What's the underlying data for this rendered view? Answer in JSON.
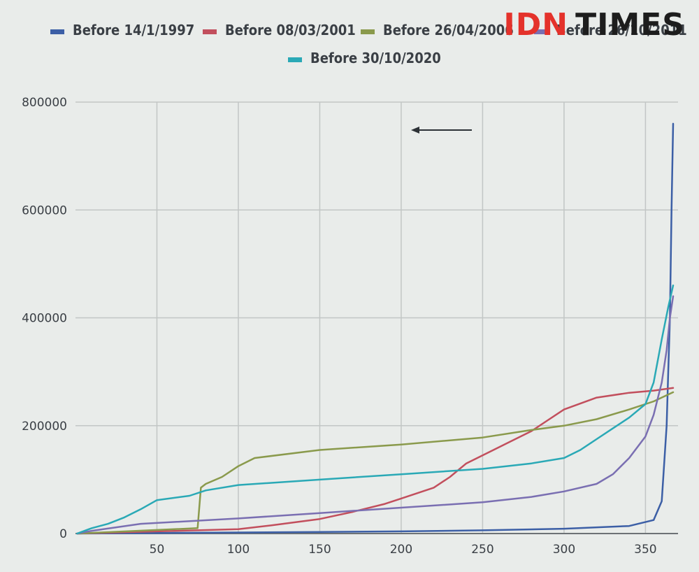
{
  "brand": {
    "part1": "IDN",
    "part2": "TIMES"
  },
  "colors": {
    "background": "#e9ecea",
    "grid": "#c2c6c5",
    "axis": "#6d7275",
    "brand_red": "#e4322b",
    "brand_dark": "#1d1d1d"
  },
  "chart_data": {
    "type": "line",
    "title": "",
    "xlabel": "",
    "ylabel": "",
    "xlim": [
      0,
      370
    ],
    "ylim": [
      0,
      800000
    ],
    "x_ticks": [
      50,
      100,
      150,
      200,
      250,
      300,
      350
    ],
    "y_ticks": [
      0,
      200000,
      400000,
      600000,
      800000
    ],
    "grid": true,
    "legend_position": "top",
    "legend": [
      {
        "label": "Before 14/1/1997",
        "color": "#3c5fa6"
      },
      {
        "label": "Before 08/03/2001",
        "color": "#c24f5d"
      },
      {
        "label": "Before 26/04/2006",
        "color": "#8a9a4c"
      },
      {
        "label": "Before 26/10/2011",
        "color": "#7a6fb2"
      },
      {
        "label": "Before 30/10/2020",
        "color": "#2aa9b6"
      }
    ],
    "series": [
      {
        "name": "Before 14/1/1997",
        "color": "#3c5fa6",
        "points": [
          [
            1,
            0
          ],
          [
            50,
            1000
          ],
          [
            100,
            2000
          ],
          [
            150,
            3000
          ],
          [
            200,
            4000
          ],
          [
            250,
            6000
          ],
          [
            300,
            9000
          ],
          [
            340,
            14000
          ],
          [
            355,
            25000
          ],
          [
            360,
            60000
          ],
          [
            363,
            200000
          ],
          [
            364,
            300000
          ],
          [
            365,
            400000
          ],
          [
            366,
            600000
          ],
          [
            367,
            760000
          ]
        ]
      },
      {
        "name": "Before 08/03/2001",
        "color": "#c24f5d",
        "points": [
          [
            1,
            0
          ],
          [
            50,
            4000
          ],
          [
            100,
            8000
          ],
          [
            120,
            15000
          ],
          [
            150,
            27000
          ],
          [
            170,
            40000
          ],
          [
            190,
            55000
          ],
          [
            200,
            65000
          ],
          [
            220,
            85000
          ],
          [
            230,
            105000
          ],
          [
            240,
            130000
          ],
          [
            260,
            160000
          ],
          [
            280,
            190000
          ],
          [
            290,
            210000
          ],
          [
            300,
            230000
          ],
          [
            320,
            252000
          ],
          [
            340,
            261000
          ],
          [
            355,
            265000
          ],
          [
            367,
            270000
          ]
        ]
      },
      {
        "name": "Before 26/04/2006",
        "color": "#8a9a4c",
        "points": [
          [
            1,
            0
          ],
          [
            75,
            10000
          ],
          [
            77,
            85000
          ],
          [
            80,
            92000
          ],
          [
            90,
            105000
          ],
          [
            100,
            125000
          ],
          [
            110,
            140000
          ],
          [
            150,
            155000
          ],
          [
            200,
            165000
          ],
          [
            250,
            178000
          ],
          [
            280,
            192000
          ],
          [
            300,
            200000
          ],
          [
            320,
            212000
          ],
          [
            340,
            230000
          ],
          [
            355,
            245000
          ],
          [
            367,
            262000
          ]
        ]
      },
      {
        "name": "Before 26/10/2011",
        "color": "#7a6fb2",
        "points": [
          [
            1,
            0
          ],
          [
            10,
            5000
          ],
          [
            40,
            18000
          ],
          [
            100,
            28000
          ],
          [
            150,
            38000
          ],
          [
            200,
            48000
          ],
          [
            250,
            58000
          ],
          [
            280,
            68000
          ],
          [
            300,
            78000
          ],
          [
            320,
            92000
          ],
          [
            330,
            110000
          ],
          [
            340,
            140000
          ],
          [
            350,
            180000
          ],
          [
            355,
            220000
          ],
          [
            360,
            280000
          ],
          [
            363,
            340000
          ],
          [
            365,
            400000
          ],
          [
            367,
            440000
          ]
        ]
      },
      {
        "name": "Before 30/10/2020",
        "color": "#2aa9b6",
        "points": [
          [
            1,
            0
          ],
          [
            10,
            10000
          ],
          [
            20,
            18000
          ],
          [
            30,
            30000
          ],
          [
            40,
            45000
          ],
          [
            50,
            62000
          ],
          [
            70,
            70000
          ],
          [
            80,
            80000
          ],
          [
            100,
            90000
          ],
          [
            150,
            100000
          ],
          [
            200,
            110000
          ],
          [
            250,
            120000
          ],
          [
            280,
            130000
          ],
          [
            300,
            140000
          ],
          [
            310,
            155000
          ],
          [
            320,
            175000
          ],
          [
            330,
            195000
          ],
          [
            340,
            215000
          ],
          [
            350,
            240000
          ],
          [
            355,
            280000
          ],
          [
            360,
            360000
          ],
          [
            364,
            420000
          ],
          [
            367,
            460000
          ]
        ]
      }
    ]
  }
}
